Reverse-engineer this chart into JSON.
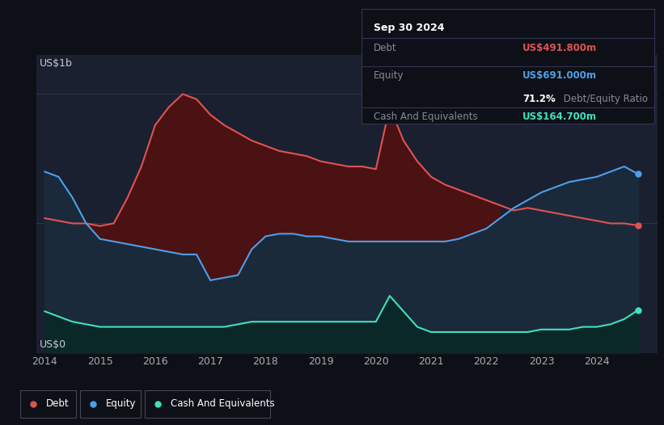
{
  "bg_color": "#0d1117",
  "plot_bg_color": "#1a2030",
  "ylabel_top": "US$1b",
  "ylabel_bottom": "US$0",
  "debt_color": "#e05252",
  "equity_color": "#4d9fec",
  "cash_color": "#40e0c0",
  "info_box": {
    "date": "Sep 30 2024",
    "debt_label": "Debt",
    "debt_value": "US$491.800m",
    "equity_label": "Equity",
    "equity_value": "US$691.000m",
    "ratio_bold": "71.2%",
    "ratio_text": " Debt/Equity Ratio",
    "cash_label": "Cash And Equivalents",
    "cash_value": "US$164.700m"
  },
  "years": [
    2014.0,
    2014.25,
    2014.5,
    2014.75,
    2015.0,
    2015.25,
    2015.5,
    2015.75,
    2016.0,
    2016.25,
    2016.5,
    2016.75,
    2017.0,
    2017.25,
    2017.5,
    2017.75,
    2018.0,
    2018.25,
    2018.5,
    2018.75,
    2019.0,
    2019.25,
    2019.5,
    2019.75,
    2020.0,
    2020.25,
    2020.5,
    2020.75,
    2021.0,
    2021.25,
    2021.5,
    2021.75,
    2022.0,
    2022.25,
    2022.5,
    2022.75,
    2023.0,
    2023.25,
    2023.5,
    2023.75,
    2024.0,
    2024.25,
    2024.5,
    2024.75
  ],
  "debt": [
    0.52,
    0.51,
    0.5,
    0.5,
    0.49,
    0.5,
    0.6,
    0.72,
    0.88,
    0.95,
    1.0,
    0.98,
    0.92,
    0.88,
    0.85,
    0.82,
    0.8,
    0.78,
    0.77,
    0.76,
    0.74,
    0.73,
    0.72,
    0.72,
    0.71,
    0.95,
    0.82,
    0.74,
    0.68,
    0.65,
    0.63,
    0.61,
    0.59,
    0.57,
    0.55,
    0.56,
    0.55,
    0.54,
    0.53,
    0.52,
    0.51,
    0.5,
    0.5,
    0.492
  ],
  "equity": [
    0.7,
    0.68,
    0.6,
    0.5,
    0.44,
    0.43,
    0.42,
    0.41,
    0.4,
    0.39,
    0.38,
    0.38,
    0.28,
    0.29,
    0.3,
    0.4,
    0.45,
    0.46,
    0.46,
    0.45,
    0.45,
    0.44,
    0.43,
    0.43,
    0.43,
    0.43,
    0.43,
    0.43,
    0.43,
    0.43,
    0.44,
    0.46,
    0.48,
    0.52,
    0.56,
    0.59,
    0.62,
    0.64,
    0.66,
    0.67,
    0.68,
    0.7,
    0.72,
    0.691
  ],
  "cash": [
    0.16,
    0.14,
    0.12,
    0.11,
    0.1,
    0.1,
    0.1,
    0.1,
    0.1,
    0.1,
    0.1,
    0.1,
    0.1,
    0.1,
    0.11,
    0.12,
    0.12,
    0.12,
    0.12,
    0.12,
    0.12,
    0.12,
    0.12,
    0.12,
    0.12,
    0.22,
    0.16,
    0.1,
    0.08,
    0.08,
    0.08,
    0.08,
    0.08,
    0.08,
    0.08,
    0.08,
    0.09,
    0.09,
    0.09,
    0.1,
    0.1,
    0.11,
    0.13,
    0.1647
  ],
  "legend_items": [
    {
      "label": "Debt",
      "color": "#e05252"
    },
    {
      "label": "Equity",
      "color": "#4d9fec"
    },
    {
      "label": "Cash And Equivalents",
      "color": "#40e0c0"
    }
  ],
  "xtick_years": [
    2014,
    2015,
    2016,
    2017,
    2018,
    2019,
    2020,
    2021,
    2022,
    2023,
    2024
  ]
}
